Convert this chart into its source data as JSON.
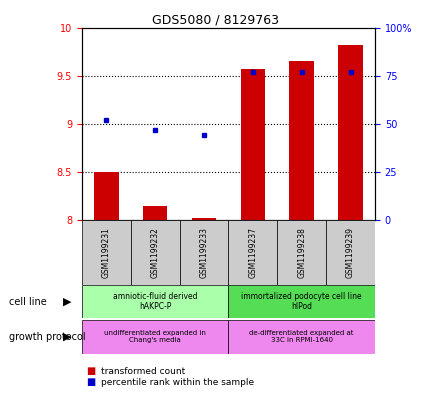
{
  "title": "GDS5080 / 8129763",
  "samples": [
    "GSM1199231",
    "GSM1199232",
    "GSM1199233",
    "GSM1199237",
    "GSM1199238",
    "GSM1199239"
  ],
  "transformed_counts": [
    8.5,
    8.15,
    8.02,
    9.57,
    9.65,
    9.82
  ],
  "percentile_ranks": [
    52,
    47,
    44,
    77,
    77,
    77
  ],
  "ylim_left": [
    8.0,
    10.0
  ],
  "ylim_right": [
    0,
    100
  ],
  "yticks_left": [
    8.0,
    8.5,
    9.0,
    9.5,
    10.0
  ],
  "ytick_labels_left": [
    "8",
    "8.5",
    "9",
    "9.5",
    "10"
  ],
  "yticks_right": [
    0,
    25,
    50,
    75,
    100
  ],
  "ytick_labels_right": [
    "0",
    "25",
    "50",
    "75",
    "100%"
  ],
  "bar_color": "#cc0000",
  "dot_color": "#0000cc",
  "bar_bottom": 8.0,
  "cell_line_groups": [
    {
      "label": "amniotic-fluid derived\nhAKPC-P",
      "samples": [
        0,
        1,
        2
      ],
      "color": "#aaffaa"
    },
    {
      "label": "immortalized podocyte cell line\nhIPod",
      "samples": [
        3,
        4,
        5
      ],
      "color": "#55dd55"
    }
  ],
  "growth_protocol_groups": [
    {
      "label": "undifferentiated expanded in\nChang's media",
      "samples": [
        0,
        1,
        2
      ],
      "color": "#ee88ee"
    },
    {
      "label": "de-differentiated expanded at\n33C in RPMI-1640",
      "samples": [
        3,
        4,
        5
      ],
      "color": "#ee88ee"
    }
  ],
  "bg_color": "#ffffff",
  "tick_area_bg": "#cccccc"
}
